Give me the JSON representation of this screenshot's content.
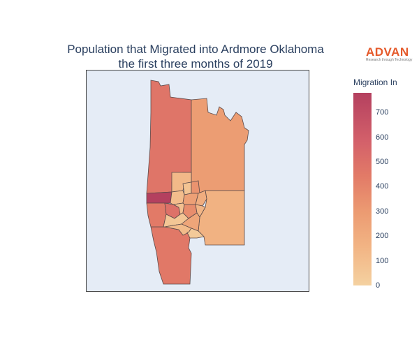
{
  "title": {
    "line1": "Population that Migrated into Ardmore Oklahoma",
    "line2": "the first three months of 2019"
  },
  "logo": {
    "name": "ADVAN",
    "tagline": "Research through Technology",
    "color": "#e55a2b"
  },
  "colorbar": {
    "title": "Migration In",
    "ticks": [
      "700",
      "600",
      "500",
      "400",
      "300",
      "200",
      "100",
      "0"
    ],
    "min": 0,
    "max": 780,
    "colors": [
      "#f4d1a0",
      "#f2b484",
      "#ec9b72",
      "#e27a67",
      "#d3606a",
      "#b4405f"
    ]
  },
  "map": {
    "background": "#e5ecf6",
    "regions": [
      {
        "id": "north-west-tract",
        "value": 500
      },
      {
        "id": "north-east-tract",
        "value": 300
      },
      {
        "id": "south-east-tract",
        "value": 170
      },
      {
        "id": "south-west-tract",
        "value": 480
      },
      {
        "id": "west-edge-tract",
        "value": 780
      },
      {
        "id": "west-mid-tract",
        "value": 470
      },
      {
        "id": "inner-west-tract",
        "value": 520
      },
      {
        "id": "central-north-tract",
        "value": 130
      },
      {
        "id": "central-a",
        "value": 70
      },
      {
        "id": "central-b",
        "value": 350
      },
      {
        "id": "central-c",
        "value": 110
      },
      {
        "id": "central-d",
        "value": 280
      },
      {
        "id": "central-e",
        "value": 200
      },
      {
        "id": "central-f",
        "value": 90
      },
      {
        "id": "central-g",
        "value": 380
      },
      {
        "id": "central-h",
        "value": 150
      },
      {
        "id": "central-i",
        "value": 60
      },
      {
        "id": "central-j",
        "value": 250
      },
      {
        "id": "central-k",
        "value": 120
      },
      {
        "id": "central-l",
        "value": 40
      }
    ]
  }
}
